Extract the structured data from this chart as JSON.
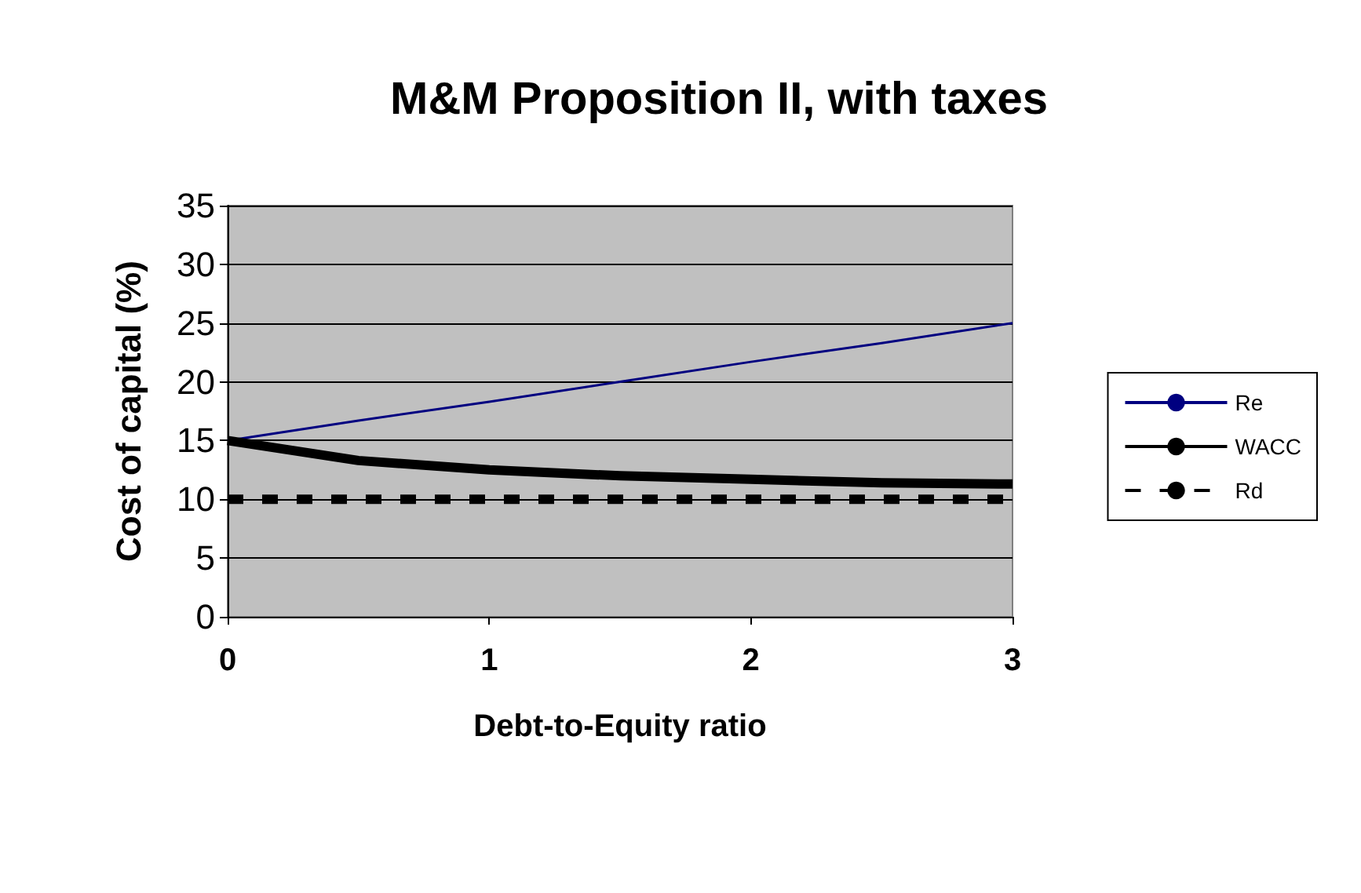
{
  "chart_data": {
    "type": "line",
    "title": "M&M Proposition II, with taxes",
    "xlabel": "Debt-to-Equity ratio",
    "ylabel": "Cost of capital (%)",
    "x": [
      0,
      0.5,
      1,
      1.5,
      2,
      2.5,
      3
    ],
    "series": [
      {
        "name": "Re",
        "color": "#000080",
        "values": [
          15,
          16.7,
          18.3,
          20,
          21.7,
          23.3,
          25
        ]
      },
      {
        "name": "WACC",
        "color": "#000000",
        "values": [
          15,
          13.3,
          12.5,
          12,
          11.7,
          11.4,
          11.3
        ]
      },
      {
        "name": "Rd",
        "color": "#000000",
        "values": [
          10,
          10,
          10,
          10,
          10,
          10,
          10
        ],
        "line_style": "dashed"
      }
    ],
    "xlim": [
      0,
      3
    ],
    "xticks": [
      0,
      1,
      2,
      3
    ],
    "ylim": [
      0,
      35
    ],
    "yticks": [
      0,
      5,
      10,
      15,
      20,
      25,
      30,
      35
    ],
    "grid": "y",
    "legend": "right",
    "marker": "none"
  }
}
